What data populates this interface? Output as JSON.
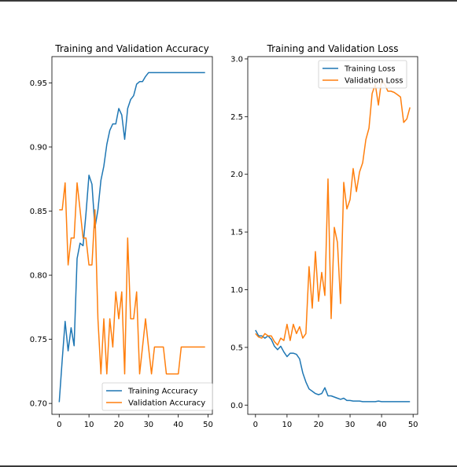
{
  "chart_data": [
    {
      "type": "line",
      "title": "Training and Validation Accuracy",
      "xlabel": "",
      "ylabel": "",
      "xlim": [
        -2.45,
        51.45
      ],
      "ylim": [
        0.6915,
        0.9705
      ],
      "xticks": [
        0,
        10,
        20,
        30,
        40,
        50
      ],
      "yticks": [
        0.7,
        0.75,
        0.8,
        0.85,
        0.9,
        0.95
      ],
      "ytick_labels": [
        "0.70",
        "0.75",
        "0.80",
        "0.85",
        "0.90",
        "0.95"
      ],
      "legend": "lower-right",
      "grid": false,
      "x": [
        0,
        1,
        2,
        3,
        4,
        5,
        6,
        7,
        8,
        9,
        10,
        11,
        12,
        13,
        14,
        15,
        16,
        17,
        18,
        19,
        20,
        21,
        22,
        23,
        24,
        25,
        26,
        27,
        28,
        29,
        30,
        31,
        32,
        33,
        34,
        35,
        36,
        37,
        38,
        39,
        40,
        41,
        42,
        43,
        44,
        45,
        46,
        47,
        48,
        49
      ],
      "series": [
        {
          "name": "Training Accuracy",
          "color": "#1f77b4",
          "values": [
            0.701,
            0.734,
            0.764,
            0.741,
            0.759,
            0.745,
            0.813,
            0.825,
            0.823,
            0.848,
            0.878,
            0.871,
            0.837,
            0.851,
            0.874,
            0.885,
            0.902,
            0.913,
            0.918,
            0.918,
            0.93,
            0.925,
            0.906,
            0.93,
            0.937,
            0.94,
            0.949,
            0.951,
            0.951,
            0.955,
            0.958,
            0.958,
            0.958,
            0.958,
            0.958,
            0.958,
            0.958,
            0.958,
            0.958,
            0.958,
            0.958,
            0.958,
            0.958,
            0.958,
            0.958,
            0.958,
            0.958,
            0.958,
            0.958,
            0.958
          ]
        },
        {
          "name": "Validation Accuracy",
          "color": "#ff7f0e",
          "values": [
            0.851,
            0.851,
            0.872,
            0.808,
            0.829,
            0.829,
            0.872,
            0.851,
            0.829,
            0.829,
            0.808,
            0.808,
            0.851,
            0.766,
            0.723,
            0.766,
            0.723,
            0.766,
            0.744,
            0.787,
            0.766,
            0.787,
            0.723,
            0.829,
            0.766,
            0.766,
            0.787,
            0.723,
            0.744,
            0.766,
            0.744,
            0.723,
            0.744,
            0.744,
            0.744,
            0.744,
            0.723,
            0.723,
            0.723,
            0.723,
            0.723,
            0.744,
            0.744,
            0.744,
            0.744,
            0.744,
            0.744,
            0.744,
            0.744,
            0.744
          ]
        }
      ]
    },
    {
      "type": "line",
      "title": "Training and Validation Loss",
      "xlabel": "",
      "ylabel": "",
      "xlim": [
        -2.45,
        51.45
      ],
      "ylim": [
        -0.08,
        3.02
      ],
      "xticks": [
        0,
        10,
        20,
        30,
        40,
        50
      ],
      "yticks": [
        0.0,
        0.5,
        1.0,
        1.5,
        2.0,
        2.5,
        3.0
      ],
      "ytick_labels": [
        "0.0",
        "0.5",
        "1.0",
        "1.5",
        "2.0",
        "2.5",
        "3.0"
      ],
      "legend": "upper-right",
      "grid": false,
      "x": [
        0,
        1,
        2,
        3,
        4,
        5,
        6,
        7,
        8,
        9,
        10,
        11,
        12,
        13,
        14,
        15,
        16,
        17,
        18,
        19,
        20,
        21,
        22,
        23,
        24,
        25,
        26,
        27,
        28,
        29,
        30,
        31,
        32,
        33,
        34,
        35,
        36,
        37,
        38,
        39,
        40,
        41,
        42,
        43,
        44,
        45,
        46,
        47,
        48,
        49
      ],
      "series": [
        {
          "name": "Training Loss",
          "color": "#1f77b4",
          "values": [
            0.65,
            0.6,
            0.6,
            0.58,
            0.6,
            0.57,
            0.51,
            0.48,
            0.51,
            0.46,
            0.42,
            0.45,
            0.45,
            0.44,
            0.4,
            0.28,
            0.2,
            0.14,
            0.12,
            0.1,
            0.09,
            0.1,
            0.15,
            0.08,
            0.08,
            0.07,
            0.06,
            0.05,
            0.06,
            0.04,
            0.04,
            0.035,
            0.035,
            0.035,
            0.03,
            0.03,
            0.03,
            0.03,
            0.03,
            0.035,
            0.03,
            0.03,
            0.03,
            0.03,
            0.03,
            0.03,
            0.03,
            0.03,
            0.03,
            0.03
          ]
        },
        {
          "name": "Validation Loss",
          "color": "#ff7f0e",
          "values": [
            0.62,
            0.59,
            0.58,
            0.62,
            0.6,
            0.6,
            0.55,
            0.52,
            0.58,
            0.56,
            0.7,
            0.56,
            0.7,
            0.62,
            0.68,
            0.58,
            0.62,
            1.2,
            0.84,
            1.33,
            0.9,
            1.15,
            0.95,
            1.96,
            0.75,
            1.54,
            1.41,
            0.88,
            1.93,
            1.7,
            1.78,
            2.05,
            1.85,
            2.02,
            2.1,
            2.3,
            2.4,
            2.7,
            2.78,
            2.6,
            2.82,
            2.78,
            2.72,
            2.72,
            2.71,
            2.69,
            2.67,
            2.45,
            2.48,
            2.58
          ]
        }
      ]
    }
  ]
}
